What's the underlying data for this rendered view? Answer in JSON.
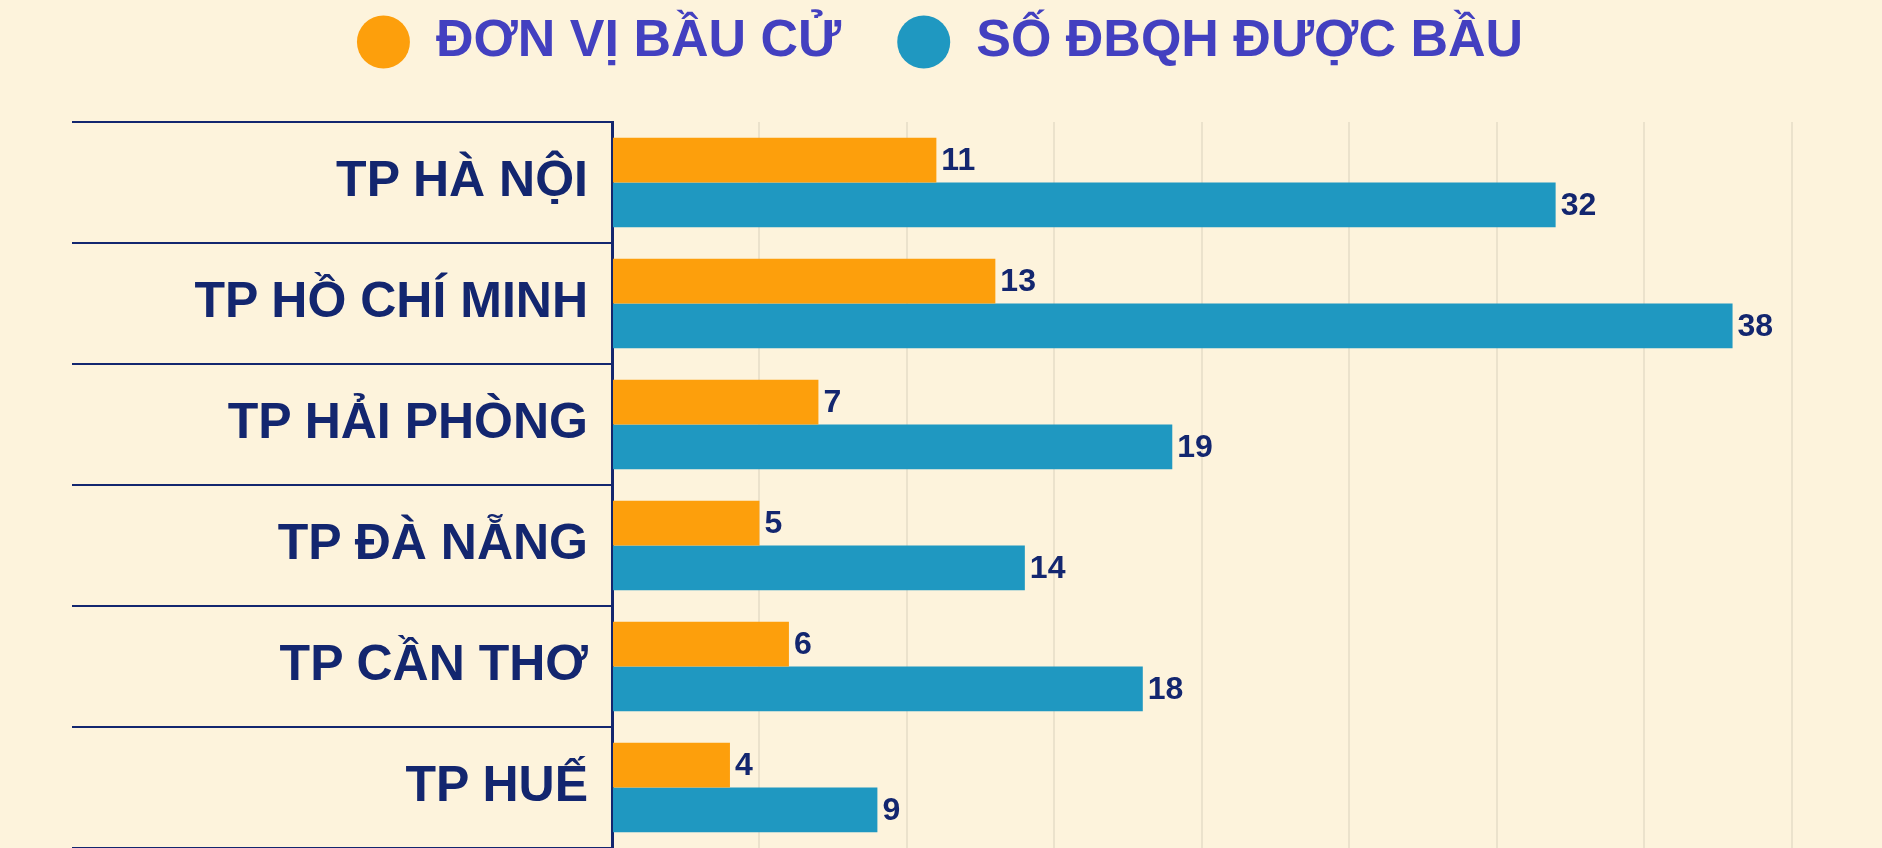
{
  "chart_data": {
    "type": "bar",
    "orientation": "horizontal",
    "categories": [
      "TP HÀ NỘI",
      "TP HỒ CHÍ MINH",
      "TP HẢI PHÒNG",
      "TP ĐÀ NẴNG",
      "TP CẦN THƠ",
      "TP HUẾ"
    ],
    "series": [
      {
        "name": "ĐƠN VỊ BẦU CỬ",
        "color": "#fd9f0c",
        "values": [
          11,
          13,
          7,
          5,
          6,
          4
        ]
      },
      {
        "name": "SỐ ĐBQH ĐƯỢC BẦU",
        "color": "#1f98c1",
        "values": [
          32,
          38,
          19,
          14,
          18,
          9
        ]
      }
    ],
    "xlim": [
      0,
      43
    ],
    "xticks": [
      {
        "value": 0,
        "label": null
      },
      {
        "value": 5,
        "label": null
      },
      {
        "value": 10,
        "label": null
      },
      {
        "value": 15,
        "label": null
      },
      {
        "value": 20,
        "label": null
      },
      {
        "value": 25,
        "label": null
      },
      {
        "value": 30,
        "label": null
      },
      {
        "value": 35,
        "label": null
      },
      {
        "value": 40,
        "label": null
      }
    ],
    "grid": "x",
    "legend": "top",
    "data_labels": true,
    "tick_labels": "y"
  }
}
